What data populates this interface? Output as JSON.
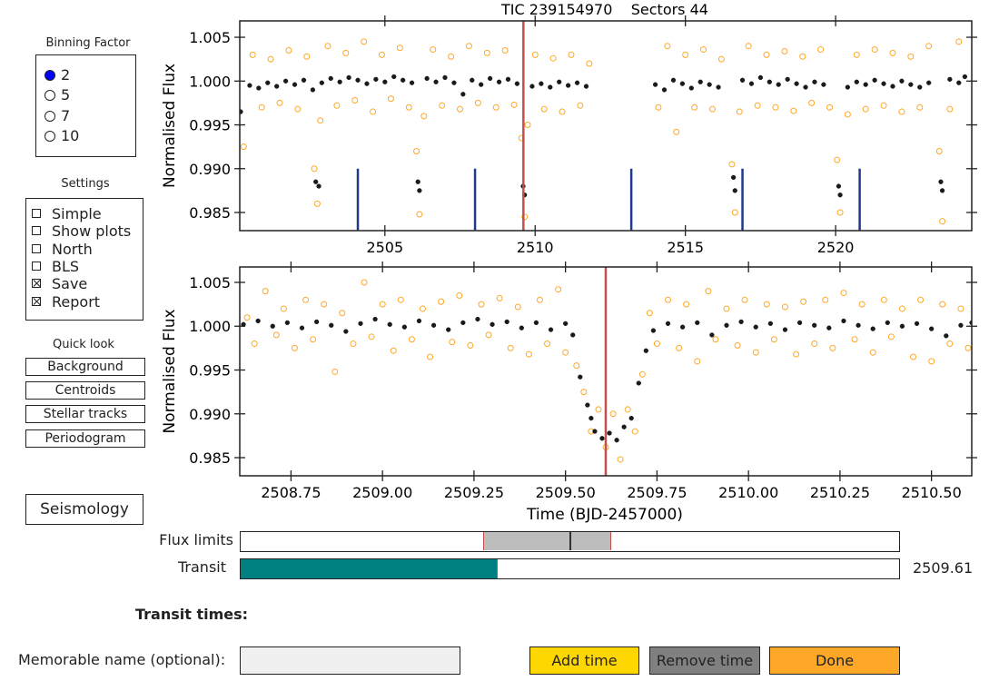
{
  "binning_factor": {
    "title": "Binning Factor",
    "options": [
      "2",
      "5",
      "7",
      "10"
    ],
    "selected_index": 0
  },
  "settings": {
    "title": "Settings",
    "options": [
      {
        "label": "Simple",
        "checked": false
      },
      {
        "label": "Show plots",
        "checked": false
      },
      {
        "label": "North",
        "checked": false
      },
      {
        "label": "BLS",
        "checked": false
      },
      {
        "label": "Save",
        "checked": true
      },
      {
        "label": "Report",
        "checked": true
      }
    ]
  },
  "quick_look": {
    "title": "Quick look",
    "buttons": [
      "Background",
      "Centroids",
      "Stellar tracks",
      "Periodogram"
    ]
  },
  "seismology": "Seismology",
  "chart_data": [
    {
      "type": "scatter",
      "title": "TIC 239154970    Sectors 44",
      "ylabel": "Normalised Flux",
      "xlim": [
        2500.17,
        2524.53
      ],
      "ylim": [
        0.98293,
        1.00687
      ],
      "xticks": [
        2505,
        2510,
        2515,
        2520
      ],
      "yticks": [
        0.985,
        {
          "value": 0.99,
          "label": "0.990"
        },
        0.995,
        {
          "value": 1,
          "label": "1.000"
        },
        1.005
      ],
      "series": [
        {
          "color": "#ffa726",
          "marker": "hollow",
          "x": [
            2500.3,
            2500.6,
            2500.9,
            2501.2,
            2501.5,
            2501.8,
            2502.1,
            2502.4,
            2502.65,
            2502.75,
            2502.85,
            2503.1,
            2503.4,
            2503.7,
            2504.0,
            2504.3,
            2504.6,
            2504.9,
            2505.2,
            2505.5,
            2505.8,
            2506.05,
            2506.15,
            2506.3,
            2506.6,
            2506.9,
            2507.2,
            2507.5,
            2507.8,
            2508.1,
            2508.4,
            2508.7,
            2509.0,
            2509.3,
            2509.55,
            2509.65,
            2509.75,
            2510.0,
            2510.3,
            2510.6,
            2510.9,
            2511.2,
            2511.5,
            2511.8,
            2514.1,
            2514.4,
            2514.7,
            2515.0,
            2515.3,
            2515.6,
            2515.9,
            2516.2,
            2516.55,
            2516.65,
            2516.8,
            2517.1,
            2517.4,
            2517.7,
            2518.0,
            2518.3,
            2518.6,
            2518.9,
            2519.2,
            2519.5,
            2519.8,
            2520.05,
            2520.15,
            2520.4,
            2520.7,
            2521.0,
            2521.3,
            2521.6,
            2521.9,
            2522.2,
            2522.5,
            2522.8,
            2523.1,
            2523.45,
            2523.55,
            2523.8,
            2524.1
          ],
          "values": [
            0.9925,
            1.003,
            0.997,
            1.0025,
            0.9975,
            1.0035,
            0.9968,
            1.0028,
            0.99,
            0.986,
            0.9955,
            1.004,
            0.9972,
            1.0032,
            0.9978,
            1.0045,
            0.9965,
            1.003,
            0.998,
            1.0038,
            0.997,
            0.992,
            0.9848,
            0.996,
            1.0036,
            0.9972,
            1.0028,
            0.9968,
            1.004,
            0.9975,
            1.0032,
            0.997,
            1.0035,
            0.9973,
            0.9935,
            0.9845,
            0.995,
            1.003,
            0.9968,
            1.0026,
            0.9965,
            1.003,
            0.9972,
            1.002,
            0.997,
            1.004,
            0.9942,
            1.003,
            0.997,
            1.0036,
            0.9968,
            1.0025,
            0.9905,
            0.985,
            0.9965,
            1.004,
            0.9972,
            1.003,
            0.997,
            1.0034,
            0.9966,
            1.0028,
            0.9975,
            1.0036,
            0.997,
            0.991,
            0.985,
            0.9962,
            1.003,
            0.9968,
            1.0036,
            0.9972,
            1.0032,
            0.9965,
            1.0028,
            0.997,
            1.004,
            0.992,
            0.984,
            0.9968,
            1.0045
          ]
        },
        {
          "color": "#1a1a1a",
          "marker": "filled",
          "x": [
            2500.2,
            2500.5,
            2500.8,
            2501.1,
            2501.4,
            2501.7,
            2502.0,
            2502.3,
            2502.6,
            2502.7,
            2502.8,
            2502.9,
            2503.2,
            2503.5,
            2503.8,
            2504.1,
            2504.4,
            2504.7,
            2505.0,
            2505.3,
            2505.6,
            2505.9,
            2506.1,
            2506.15,
            2506.4,
            2506.7,
            2507.0,
            2507.3,
            2507.6,
            2507.9,
            2508.2,
            2508.5,
            2508.8,
            2509.1,
            2509.4,
            2509.6,
            2509.65,
            2509.9,
            2510.2,
            2510.5,
            2510.8,
            2511.1,
            2511.4,
            2511.7,
            2514.0,
            2514.3,
            2514.6,
            2514.9,
            2515.2,
            2515.5,
            2515.8,
            2516.1,
            2516.6,
            2516.65,
            2516.9,
            2517.2,
            2517.5,
            2517.8,
            2518.1,
            2518.4,
            2518.7,
            2519.0,
            2519.3,
            2519.6,
            2520.1,
            2520.15,
            2520.4,
            2520.7,
            2521.0,
            2521.3,
            2521.6,
            2521.9,
            2522.2,
            2522.5,
            2522.8,
            2523.1,
            2523.5,
            2523.55,
            2523.8,
            2524.1,
            2524.3
          ],
          "values": [
            0.9965,
            0.9995,
            0.9992,
            0.9998,
            0.9994,
            1.0,
            0.9996,
            1.0001,
            0.999,
            0.9885,
            0.988,
            0.9998,
            1.0003,
            0.9999,
            1.0004,
            1.0001,
            0.9997,
            1.0002,
            0.9999,
            1.0005,
            1.0001,
            0.9998,
            0.9885,
            0.9875,
            1.0003,
            0.9999,
            1.0004,
            0.9998,
            0.9985,
            1.0001,
            0.9996,
            1.0003,
            0.9999,
            1.0002,
            0.9997,
            0.988,
            0.987,
            0.9994,
            0.9997,
            0.9993,
            0.9999,
            0.9995,
            0.9998,
            0.9994,
            0.9996,
            0.999,
            1.0001,
            0.9997,
            0.9992,
            0.9999,
            0.9996,
            0.9993,
            0.989,
            0.9875,
            1.0001,
            0.9997,
            1.0004,
            0.9999,
            0.9996,
            1.0002,
            0.9997,
            0.9993,
            0.9999,
            0.9996,
            0.988,
            0.987,
            0.9993,
            0.9999,
            0.9996,
            1.0001,
            0.9997,
            0.9994,
            1.0,
            0.9996,
            0.9993,
            0.9998,
            0.9885,
            0.9875,
            1.0002,
            0.9998,
            1.0005
          ]
        }
      ],
      "transit_line": {
        "x": 2509.61,
        "color": "#c0504d"
      },
      "markers": {
        "color": "#1f3a8a",
        "x": [
          2504.1,
          2508.0,
          2513.2,
          2516.9,
          2520.8
        ],
        "y_from": 0.983,
        "y_to": 0.99
      }
    },
    {
      "type": "scatter",
      "ylabel": "Normalised Flux",
      "xlabel": "Time (BJD-2457000)",
      "xlim": [
        2508.61,
        2510.61
      ],
      "ylim": [
        0.98293,
        1.00676
      ],
      "xticks": [
        2508.75,
        {
          "value": 2509,
          "label": "2509.00"
        },
        2509.25,
        {
          "value": 2509.5,
          "label": "2509.50"
        },
        2509.75,
        {
          "value": 2510,
          "label": "2510.00"
        },
        2510.25,
        {
          "value": 2510.5,
          "label": "2510.50"
        }
      ],
      "yticks": [
        0.985,
        {
          "value": 0.99,
          "label": "0.990"
        },
        0.995,
        {
          "value": 1,
          "label": "1.000"
        },
        1.005
      ],
      "series": [
        {
          "color": "#ffa726",
          "marker": "hollow",
          "x": [
            2508.63,
            2508.65,
            2508.68,
            2508.71,
            2508.73,
            2508.76,
            2508.79,
            2508.81,
            2508.84,
            2508.87,
            2508.89,
            2508.92,
            2508.95,
            2508.97,
            2509.0,
            2509.03,
            2509.05,
            2509.08,
            2509.11,
            2509.13,
            2509.16,
            2509.19,
            2509.21,
            2509.24,
            2509.27,
            2509.29,
            2509.32,
            2509.35,
            2509.37,
            2509.4,
            2509.43,
            2509.45,
            2509.48,
            2509.5,
            2509.53,
            2509.55,
            2509.57,
            2509.59,
            2509.61,
            2509.63,
            2509.65,
            2509.67,
            2509.69,
            2509.71,
            2509.73,
            2509.75,
            2509.78,
            2509.81,
            2509.83,
            2509.86,
            2509.89,
            2509.91,
            2509.94,
            2509.97,
            2509.99,
            2510.02,
            2510.05,
            2510.07,
            2510.1,
            2510.13,
            2510.15,
            2510.18,
            2510.21,
            2510.23,
            2510.26,
            2510.29,
            2510.31,
            2510.34,
            2510.37,
            2510.39,
            2510.42,
            2510.45,
            2510.47,
            2510.5,
            2510.53,
            2510.55,
            2510.58,
            2510.6
          ],
          "values": [
            1.001,
            0.998,
            1.004,
            0.999,
            1.002,
            0.9975,
            1.003,
            0.9985,
            1.0025,
            0.9948,
            1.0015,
            0.998,
            1.005,
            0.9988,
            1.0025,
            0.9972,
            1.003,
            0.9985,
            1.002,
            0.9965,
            1.0028,
            0.9982,
            1.0035,
            0.9978,
            1.0025,
            0.999,
            1.0032,
            0.9975,
            1.0022,
            0.9968,
            1.003,
            0.998,
            1.0042,
            0.997,
            0.9955,
            0.9925,
            0.988,
            0.9905,
            0.9862,
            0.99,
            0.9848,
            0.9905,
            0.988,
            0.9945,
            1.0015,
            0.998,
            1.003,
            0.9975,
            1.0025,
            0.996,
            1.004,
            0.9985,
            1.002,
            0.9978,
            1.003,
            0.997,
            1.0025,
            0.9985,
            1.0022,
            0.9968,
            1.0028,
            0.998,
            1.003,
            0.9975,
            1.0038,
            0.9985,
            1.0025,
            0.997,
            1.003,
            0.9988,
            1.002,
            0.9965,
            1.003,
            0.996,
            1.0025,
            0.998,
            1.002,
            0.9975
          ]
        },
        {
          "color": "#1a1a1a",
          "marker": "filled",
          "x": [
            2508.62,
            2508.66,
            2508.7,
            2508.74,
            2508.78,
            2508.82,
            2508.86,
            2508.9,
            2508.94,
            2508.98,
            2509.02,
            2509.06,
            2509.1,
            2509.14,
            2509.18,
            2509.22,
            2509.26,
            2509.3,
            2509.34,
            2509.38,
            2509.42,
            2509.46,
            2509.5,
            2509.52,
            2509.54,
            2509.56,
            2509.57,
            2509.58,
            2509.6,
            2509.62,
            2509.64,
            2509.66,
            2509.68,
            2509.7,
            2509.72,
            2509.74,
            2509.78,
            2509.82,
            2509.86,
            2509.9,
            2509.94,
            2509.98,
            2510.02,
            2510.06,
            2510.1,
            2510.14,
            2510.18,
            2510.22,
            2510.26,
            2510.3,
            2510.34,
            2510.38,
            2510.42,
            2510.46,
            2510.5,
            2510.54,
            2510.58,
            2510.61
          ],
          "values": [
            1.0002,
            1.0006,
            1.0,
            1.0004,
            0.9998,
            1.0005,
            1.0001,
            0.9994,
            1.0003,
            1.0008,
            1.0002,
            0.9999,
            1.0006,
            1.0001,
            0.9996,
            1.0004,
            1.0008,
            1.0002,
            1.0005,
            0.9998,
            1.0004,
            0.9996,
            1.0003,
            0.999,
            0.9942,
            0.991,
            0.9895,
            0.988,
            0.9872,
            0.9878,
            0.987,
            0.9885,
            0.9895,
            0.9935,
            0.9972,
            0.9995,
            1.0003,
            0.9999,
            1.0004,
            0.999,
            1.0001,
            1.0005,
            0.9999,
            1.0003,
            0.9996,
            1.0004,
            1.0001,
            0.9998,
            1.0006,
            1.0001,
            0.9997,
            1.0004,
            1.0,
            1.0003,
            0.9997,
            0.9989,
            1.0001,
            1.0004
          ]
        }
      ],
      "transit_line": {
        "x": 2509.61,
        "color": "#c0504d"
      }
    }
  ],
  "flux_limits": {
    "label": "Flux limits"
  },
  "transit_slider": {
    "label": "Transit",
    "value": 2509.61
  },
  "transit_times": {
    "label": "Transit times:"
  },
  "name_input": {
    "label": "Memorable name (optional):"
  },
  "actions": [
    {
      "label": "Add time",
      "color": "#ffd700"
    },
    {
      "label": "Remove time",
      "color": "#808080"
    },
    {
      "label": "Done",
      "color": "#ffa726"
    }
  ]
}
